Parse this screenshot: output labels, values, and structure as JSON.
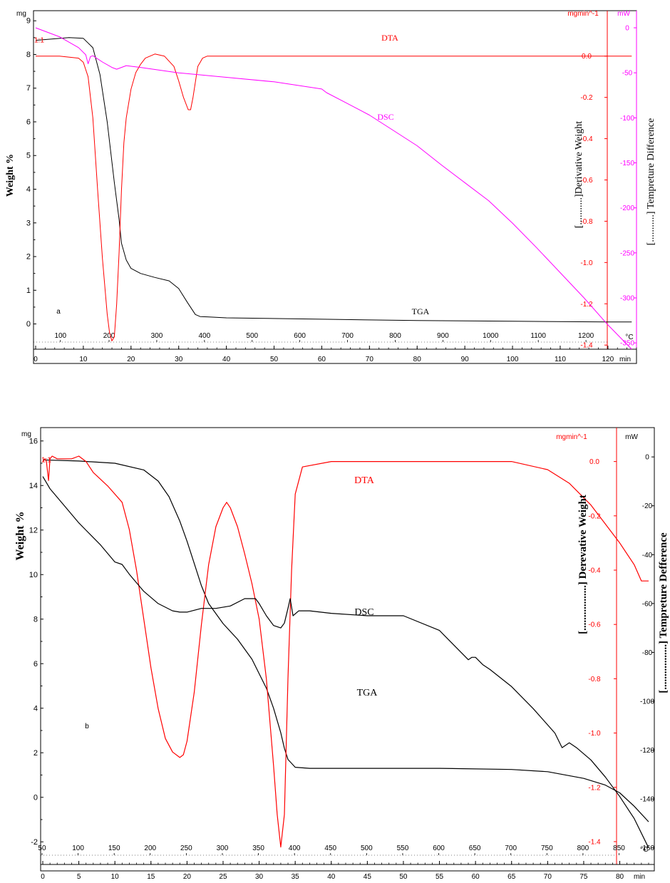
{
  "colors": {
    "tga": "#000000",
    "dta": "#ff0000",
    "dsc_a": "#ff00ff",
    "dsc_b": "#000000",
    "axis_red": "#ff0000",
    "axis_magenta": "#ff00ff"
  },
  "chart_data": [
    {
      "panel": "a",
      "type": "line",
      "panel_letter": "a",
      "ylabel": "Weight %",
      "yunit": "mg",
      "y2label": "[...........]Derivative Weight",
      "y2unit": "mgmin^-1",
      "y3label": "[...........] Tempreture Difference",
      "y3unit": "mW",
      "xunit": "min",
      "tunit": "°C",
      "xlim": [
        0,
        126
      ],
      "ylim": [
        -0.75,
        9.3
      ],
      "y2lim": [
        -1.42,
        0.22
      ],
      "y3lim": [
        -357,
        19
      ],
      "yticks": [
        0,
        1,
        2,
        3,
        4,
        5,
        6,
        7,
        8,
        9
      ],
      "y2ticks": [
        "0.0",
        "-0.2",
        "-0.4",
        "-0.6",
        "-0.8",
        "-1.0",
        "-1.2",
        "-1.4"
      ],
      "y3ticks": [
        "0",
        "-50",
        "-100",
        "-150",
        "-200",
        "-250",
        "-300",
        "-350"
      ],
      "xticks": [
        0,
        10,
        20,
        30,
        40,
        50,
        60,
        70,
        80,
        90,
        100,
        110,
        120
      ],
      "tticks": [
        {
          "label": "100",
          "x": 5.2
        },
        {
          "label": "200",
          "x": 15.4
        },
        {
          "label": "300",
          "x": 25.4
        },
        {
          "label": "400",
          "x": 35.4
        },
        {
          "label": "500",
          "x": 45.4
        },
        {
          "label": "600",
          "x": 55.4
        },
        {
          "label": "700",
          "x": 65.4
        },
        {
          "label": "800",
          "x": 75.4
        },
        {
          "label": "900",
          "x": 85.4
        },
        {
          "label": "1000",
          "x": 95.4
        },
        {
          "label": "1100",
          "x": 105.4
        },
        {
          "label": "1200",
          "x": 115.4
        }
      ],
      "series": [
        {
          "name": "TGA",
          "axis": "y",
          "color": "#000000",
          "x": [
            0,
            7,
            10,
            12,
            13.5,
            15,
            16.5,
            17.5,
            18,
            19,
            20,
            22,
            25,
            28,
            30,
            32,
            33.5,
            34.5,
            36,
            40,
            60,
            80,
            100,
            120,
            125
          ],
          "y": [
            8.42,
            8.5,
            8.48,
            8.2,
            7.4,
            6.0,
            4.2,
            3.1,
            2.4,
            1.9,
            1.65,
            1.5,
            1.38,
            1.28,
            1.05,
            0.6,
            0.28,
            0.22,
            0.21,
            0.18,
            0.14,
            0.1,
            0.08,
            0.06,
            0.06
          ]
        },
        {
          "name": "DTA",
          "axis": "y2",
          "color": "#ff0000",
          "x": [
            0,
            5,
            9,
            10,
            11,
            12,
            13,
            14,
            15,
            15.5,
            16,
            16.5,
            17,
            17.5,
            18,
            18.5,
            19,
            20,
            21,
            22,
            23,
            25,
            27,
            29,
            30,
            31,
            32,
            32.5,
            33,
            34,
            35,
            36,
            40,
            60,
            80,
            100,
            120,
            125
          ],
          "y": [
            0.0,
            0.0,
            -0.01,
            -0.03,
            -0.1,
            -0.3,
            -0.65,
            -0.98,
            -1.25,
            -1.34,
            -1.38,
            -1.36,
            -1.2,
            -0.95,
            -0.65,
            -0.42,
            -0.3,
            -0.16,
            -0.08,
            -0.04,
            -0.01,
            0.01,
            0.0,
            -0.05,
            -0.12,
            -0.2,
            -0.26,
            -0.26,
            -0.2,
            -0.05,
            -0.01,
            0.0,
            0.0,
            0.0,
            0.0,
            0.0,
            0.0,
            0.0
          ]
        },
        {
          "name": "DSC",
          "axis": "y3",
          "color": "#ff00ff",
          "x": [
            0,
            5,
            9,
            10.5,
            11,
            11.5,
            12,
            14,
            16,
            17,
            19,
            22,
            30,
            40,
            50,
            60,
            61,
            65,
            70,
            75,
            80,
            85,
            90,
            95,
            100,
            105,
            110,
            115,
            120,
            125
          ],
          "y": [
            0,
            -10,
            -22,
            -30,
            -40,
            -32,
            -31,
            -38,
            -44,
            -46,
            -42,
            -44,
            -50,
            -55,
            -60,
            -68,
            -72,
            -83,
            -97,
            -114,
            -131,
            -152,
            -172,
            -192,
            -217,
            -244,
            -272,
            -300,
            -330,
            -357
          ]
        }
      ]
    },
    {
      "panel": "b",
      "type": "line",
      "panel_letter": "b",
      "ylabel": "Weight %",
      "yunit": "mg",
      "y2label": "[.................] Derevative Weight",
      "y2unit": "mgmin^-1",
      "y3label": "[.................] Tempreture Defference",
      "y3unit": "mW",
      "xunit": "min",
      "tunit": "°C",
      "xlim": [
        0,
        84
      ],
      "ylim": [
        -2.6,
        16.6
      ],
      "y2lim": [
        -1.45,
        0.125
      ],
      "y3lim": [
        -163,
        12
      ],
      "yticks": [
        -2,
        0,
        2,
        4,
        6,
        8,
        10,
        12,
        14,
        16
      ],
      "y2ticks": [
        "0.0",
        "-0.2",
        "-0.4",
        "-0.6",
        "-0.8",
        "-1.0",
        "-1.2",
        "-1.4"
      ],
      "y3ticks": [
        "0",
        "-20",
        "-40",
        "-60",
        "-80",
        "-100",
        "-120",
        "-140",
        "-160"
      ],
      "xticks": [
        0,
        5,
        10,
        15,
        20,
        25,
        30,
        35,
        40,
        45,
        50,
        55,
        60,
        65,
        70,
        75,
        80
      ],
      "tticks": [
        {
          "label": "50",
          "x": -0.1
        },
        {
          "label": "100",
          "x": 4.9
        },
        {
          "label": "150",
          "x": 9.9
        },
        {
          "label": "200",
          "x": 14.9
        },
        {
          "label": "250",
          "x": 19.9
        },
        {
          "label": "300",
          "x": 24.9
        },
        {
          "label": "350",
          "x": 29.9
        },
        {
          "label": "400",
          "x": 34.9
        },
        {
          "label": "450",
          "x": 39.9
        },
        {
          "label": "500",
          "x": 44.9
        },
        {
          "label": "550",
          "x": 49.9
        },
        {
          "label": "600",
          "x": 54.9
        },
        {
          "label": "650",
          "x": 59.9
        },
        {
          "label": "700",
          "x": 64.9
        },
        {
          "label": "750",
          "x": 69.9
        },
        {
          "label": "800",
          "x": 74.9
        },
        {
          "label": "850",
          "x": 79.9
        }
      ],
      "series": [
        {
          "name": "TGA",
          "axis": "y",
          "color": "#000000",
          "x": [
            0,
            5,
            10,
            14,
            16,
            17.5,
            19,
            20,
            21,
            22,
            23,
            25,
            27,
            29,
            31,
            32,
            33,
            33.5,
            34,
            35,
            37,
            45,
            55,
            65,
            70,
            75,
            78,
            80,
            82,
            84
          ],
          "y": [
            15.15,
            15.1,
            15.0,
            14.7,
            14.2,
            13.5,
            12.4,
            11.5,
            10.5,
            9.5,
            8.7,
            7.8,
            7.1,
            6.2,
            4.9,
            4.0,
            2.9,
            2.2,
            1.7,
            1.35,
            1.3,
            1.3,
            1.3,
            1.25,
            1.15,
            0.85,
            0.55,
            0.2,
            -0.4,
            -1.1
          ]
        },
        {
          "name": "DTA",
          "axis": "y2",
          "color": "#ff0000",
          "x": [
            0,
            0.3,
            0.5,
            0.8,
            1.0,
            1.3,
            2,
            4,
            5,
            6,
            7,
            9,
            11,
            12,
            13,
            14,
            15,
            16,
            17,
            18,
            19,
            19.5,
            20,
            21,
            22,
            23,
            24,
            25,
            25.5,
            26,
            27,
            28,
            29,
            30,
            31,
            32,
            32.5,
            33,
            33.5,
            34,
            34.5,
            35,
            36,
            40,
            50,
            60,
            65,
            70,
            73,
            76,
            78,
            80,
            82,
            83,
            84
          ],
          "y": [
            0.0,
            0.01,
            0.0,
            -0.07,
            0.01,
            0.02,
            0.01,
            0.01,
            0.02,
            0.0,
            -0.04,
            -0.09,
            -0.15,
            -0.25,
            -0.4,
            -0.58,
            -0.76,
            -0.91,
            -1.02,
            -1.07,
            -1.09,
            -1.08,
            -1.03,
            -0.85,
            -0.6,
            -0.38,
            -0.24,
            -0.17,
            -0.15,
            -0.17,
            -0.24,
            -0.34,
            -0.45,
            -0.58,
            -0.8,
            -1.12,
            -1.3,
            -1.42,
            -1.3,
            -0.8,
            -0.4,
            -0.12,
            -0.02,
            0.0,
            0.0,
            0.0,
            0.0,
            -0.03,
            -0.08,
            -0.16,
            -0.23,
            -0.3,
            -0.38,
            -0.44,
            -0.44
          ]
        },
        {
          "name": "DSC",
          "axis": "y3",
          "color": "#000000",
          "x": [
            0,
            1,
            3,
            5,
            6,
            8,
            10,
            11,
            12,
            14,
            16,
            18,
            19,
            20,
            22,
            24,
            26,
            28,
            29.5,
            30,
            31,
            32,
            33,
            33.5,
            34,
            34.3,
            34.7,
            35.5,
            37,
            40,
            45,
            50,
            55,
            58,
            59,
            59.5,
            60,
            61,
            62,
            65,
            68,
            71,
            72,
            73,
            74,
            76,
            78,
            80,
            82,
            84
          ],
          "y": [
            -8,
            -13,
            -20,
            -27,
            -30,
            -36,
            -43,
            -44,
            -48,
            -55,
            -60,
            -63,
            -63.5,
            -63.5,
            -62,
            -62,
            -61,
            -58,
            -58,
            -60,
            -65,
            -69,
            -70,
            -68,
            -62,
            -58,
            -65,
            -63,
            -63,
            -64,
            -65,
            -65,
            -71,
            -80,
            -83,
            -82,
            -82,
            -85,
            -87,
            -94,
            -103,
            -113,
            -119,
            -117,
            -119,
            -124,
            -131,
            -139,
            -148,
            -160
          ]
        }
      ]
    }
  ]
}
